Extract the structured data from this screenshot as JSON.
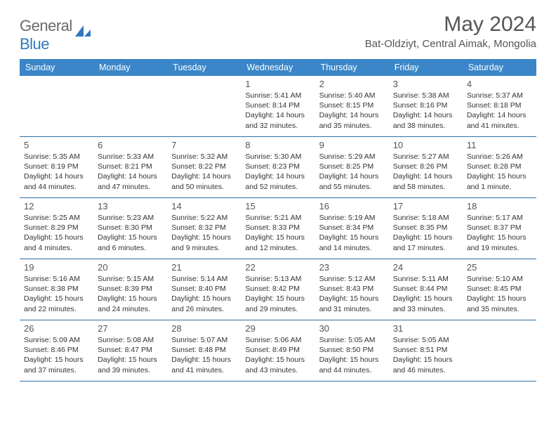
{
  "brand": {
    "text_gray": "General",
    "text_blue": "Blue",
    "accent_color": "#2f78bd",
    "gray_color": "#6a6a6a"
  },
  "header": {
    "month_title": "May 2024",
    "location": "Bat-Oldziyt, Central Aimak, Mongolia"
  },
  "colors": {
    "header_bg": "#3a86c8",
    "header_text": "#ffffff",
    "row_border": "#2f6fa8",
    "body_text": "#333333",
    "muted_text": "#555555"
  },
  "day_names": [
    "Sunday",
    "Monday",
    "Tuesday",
    "Wednesday",
    "Thursday",
    "Friday",
    "Saturday"
  ],
  "weeks": [
    [
      null,
      null,
      null,
      {
        "n": "1",
        "sunrise": "5:41 AM",
        "sunset": "8:14 PM",
        "daylight": "14 hours and 32 minutes."
      },
      {
        "n": "2",
        "sunrise": "5:40 AM",
        "sunset": "8:15 PM",
        "daylight": "14 hours and 35 minutes."
      },
      {
        "n": "3",
        "sunrise": "5:38 AM",
        "sunset": "8:16 PM",
        "daylight": "14 hours and 38 minutes."
      },
      {
        "n": "4",
        "sunrise": "5:37 AM",
        "sunset": "8:18 PM",
        "daylight": "14 hours and 41 minutes."
      }
    ],
    [
      {
        "n": "5",
        "sunrise": "5:35 AM",
        "sunset": "8:19 PM",
        "daylight": "14 hours and 44 minutes."
      },
      {
        "n": "6",
        "sunrise": "5:33 AM",
        "sunset": "8:21 PM",
        "daylight": "14 hours and 47 minutes."
      },
      {
        "n": "7",
        "sunrise": "5:32 AM",
        "sunset": "8:22 PM",
        "daylight": "14 hours and 50 minutes."
      },
      {
        "n": "8",
        "sunrise": "5:30 AM",
        "sunset": "8:23 PM",
        "daylight": "14 hours and 52 minutes."
      },
      {
        "n": "9",
        "sunrise": "5:29 AM",
        "sunset": "8:25 PM",
        "daylight": "14 hours and 55 minutes."
      },
      {
        "n": "10",
        "sunrise": "5:27 AM",
        "sunset": "8:26 PM",
        "daylight": "14 hours and 58 minutes."
      },
      {
        "n": "11",
        "sunrise": "5:26 AM",
        "sunset": "8:28 PM",
        "daylight": "15 hours and 1 minute."
      }
    ],
    [
      {
        "n": "12",
        "sunrise": "5:25 AM",
        "sunset": "8:29 PM",
        "daylight": "15 hours and 4 minutes."
      },
      {
        "n": "13",
        "sunrise": "5:23 AM",
        "sunset": "8:30 PM",
        "daylight": "15 hours and 6 minutes."
      },
      {
        "n": "14",
        "sunrise": "5:22 AM",
        "sunset": "8:32 PM",
        "daylight": "15 hours and 9 minutes."
      },
      {
        "n": "15",
        "sunrise": "5:21 AM",
        "sunset": "8:33 PM",
        "daylight": "15 hours and 12 minutes."
      },
      {
        "n": "16",
        "sunrise": "5:19 AM",
        "sunset": "8:34 PM",
        "daylight": "15 hours and 14 minutes."
      },
      {
        "n": "17",
        "sunrise": "5:18 AM",
        "sunset": "8:35 PM",
        "daylight": "15 hours and 17 minutes."
      },
      {
        "n": "18",
        "sunrise": "5:17 AM",
        "sunset": "8:37 PM",
        "daylight": "15 hours and 19 minutes."
      }
    ],
    [
      {
        "n": "19",
        "sunrise": "5:16 AM",
        "sunset": "8:38 PM",
        "daylight": "15 hours and 22 minutes."
      },
      {
        "n": "20",
        "sunrise": "5:15 AM",
        "sunset": "8:39 PM",
        "daylight": "15 hours and 24 minutes."
      },
      {
        "n": "21",
        "sunrise": "5:14 AM",
        "sunset": "8:40 PM",
        "daylight": "15 hours and 26 minutes."
      },
      {
        "n": "22",
        "sunrise": "5:13 AM",
        "sunset": "8:42 PM",
        "daylight": "15 hours and 29 minutes."
      },
      {
        "n": "23",
        "sunrise": "5:12 AM",
        "sunset": "8:43 PM",
        "daylight": "15 hours and 31 minutes."
      },
      {
        "n": "24",
        "sunrise": "5:11 AM",
        "sunset": "8:44 PM",
        "daylight": "15 hours and 33 minutes."
      },
      {
        "n": "25",
        "sunrise": "5:10 AM",
        "sunset": "8:45 PM",
        "daylight": "15 hours and 35 minutes."
      }
    ],
    [
      {
        "n": "26",
        "sunrise": "5:09 AM",
        "sunset": "8:46 PM",
        "daylight": "15 hours and 37 minutes."
      },
      {
        "n": "27",
        "sunrise": "5:08 AM",
        "sunset": "8:47 PM",
        "daylight": "15 hours and 39 minutes."
      },
      {
        "n": "28",
        "sunrise": "5:07 AM",
        "sunset": "8:48 PM",
        "daylight": "15 hours and 41 minutes."
      },
      {
        "n": "29",
        "sunrise": "5:06 AM",
        "sunset": "8:49 PM",
        "daylight": "15 hours and 43 minutes."
      },
      {
        "n": "30",
        "sunrise": "5:05 AM",
        "sunset": "8:50 PM",
        "daylight": "15 hours and 44 minutes."
      },
      {
        "n": "31",
        "sunrise": "5:05 AM",
        "sunset": "8:51 PM",
        "daylight": "15 hours and 46 minutes."
      },
      null
    ]
  ],
  "labels": {
    "sunrise": "Sunrise: ",
    "sunset": "Sunset: ",
    "daylight": "Daylight: "
  }
}
